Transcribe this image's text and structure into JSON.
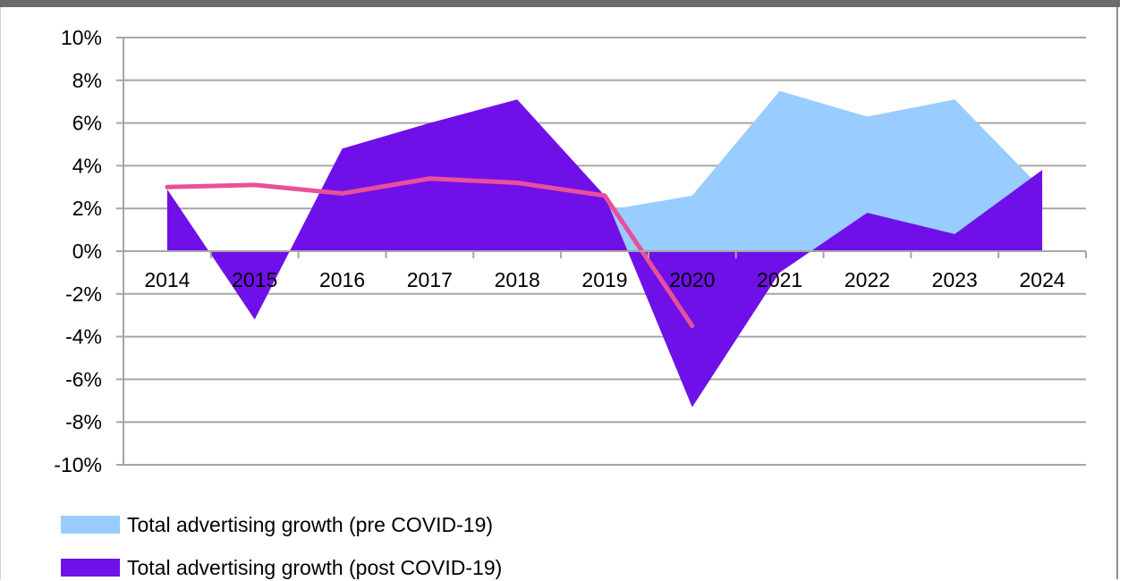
{
  "chart_data": {
    "type": "area",
    "categories": [
      "2014",
      "2015",
      "2016",
      "2017",
      "2018",
      "2019",
      "2020",
      "2021",
      "2022",
      "2023",
      "2024"
    ],
    "ylim": [
      -10,
      10
    ],
    "y_ticks": [
      10,
      8,
      6,
      4,
      2,
      0,
      -2,
      -4,
      -6,
      -8,
      -10
    ],
    "y_tick_labels": [
      "10%",
      "8%",
      "6%",
      "4%",
      "2%",
      "0%",
      "-2%",
      "-4%",
      "-6%",
      "-8%",
      "-10%"
    ],
    "grid": true,
    "legend_position": "bottom",
    "series": [
      {
        "name": "Total advertising growth (pre COVID-19)",
        "type": "area",
        "color": "#99ccff",
        "x": [
          "2019",
          "2020",
          "2021",
          "2022",
          "2023",
          "2024"
        ],
        "values": [
          1.9,
          2.6,
          7.5,
          6.3,
          7.1,
          2.9
        ]
      },
      {
        "name": "Total advertising growth (post COVID-19)",
        "type": "area",
        "color": "#7010e8",
        "x": [
          "2014",
          "2015",
          "2016",
          "2017",
          "2018",
          "2019",
          "2020",
          "2021",
          "2022",
          "2023",
          "2024"
        ],
        "values": [
          2.9,
          -3.2,
          4.8,
          6.0,
          7.1,
          2.6,
          -7.3,
          -1.0,
          1.8,
          0.8,
          3.8
        ]
      },
      {
        "type": "line",
        "color": "#e8509a",
        "x": [
          "2014",
          "2015",
          "2016",
          "2017",
          "2018",
          "2019",
          "2020"
        ],
        "values": [
          3.0,
          3.1,
          2.7,
          3.4,
          3.2,
          2.6,
          -3.5
        ]
      }
    ]
  }
}
